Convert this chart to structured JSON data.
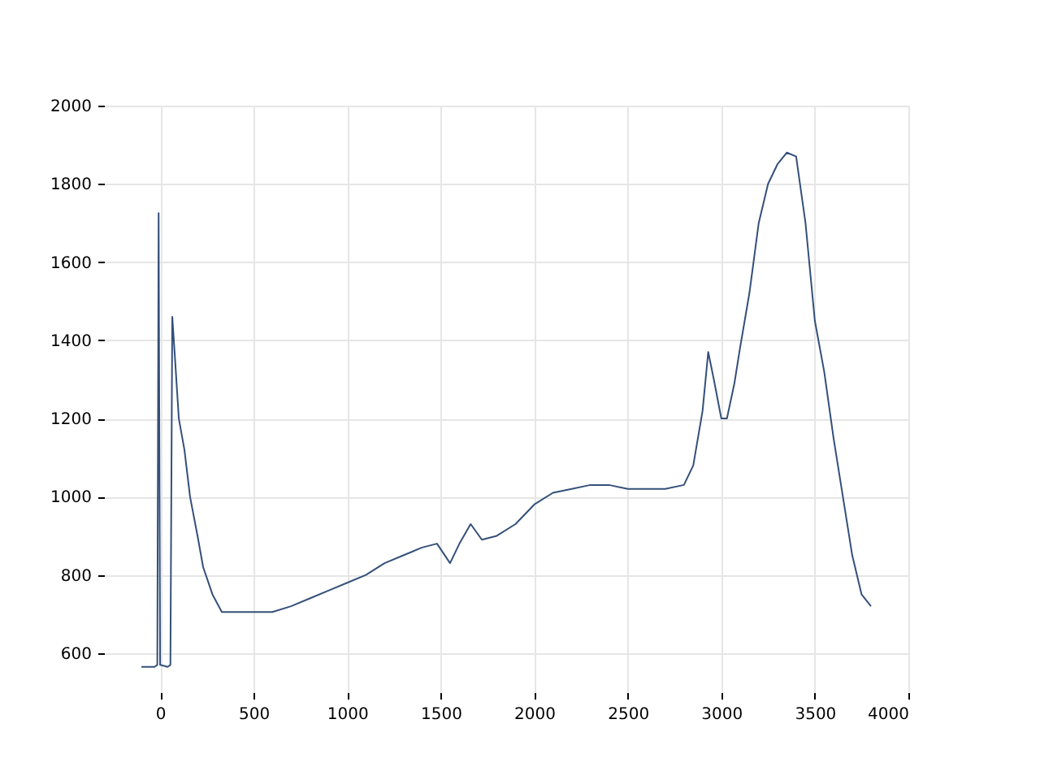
{
  "chart_data": {
    "type": "line",
    "x": [
      -100,
      -30,
      -15,
      -8,
      0,
      40,
      55,
      65,
      80,
      100,
      130,
      160,
      200,
      230,
      280,
      330,
      400,
      500,
      600,
      700,
      800,
      900,
      1000,
      1100,
      1200,
      1300,
      1400,
      1480,
      1550,
      1600,
      1660,
      1720,
      1800,
      1900,
      2000,
      2100,
      2200,
      2300,
      2400,
      2500,
      2600,
      2700,
      2800,
      2850,
      2900,
      2930,
      2960,
      3000,
      3030,
      3070,
      3100,
      3150,
      3200,
      3250,
      3300,
      3350,
      3400,
      3450,
      3500,
      3550,
      3600,
      3650,
      3700,
      3750,
      3800
    ],
    "series": [
      {
        "color": "#34507a",
        "values": [
          565,
          565,
          570,
          1725,
          570,
          565,
          570,
          1460,
          1350,
          1200,
          1120,
          1000,
          900,
          820,
          750,
          705,
          705,
          705,
          705,
          720,
          740,
          760,
          780,
          800,
          830,
          850,
          870,
          880,
          830,
          880,
          930,
          890,
          900,
          930,
          980,
          1010,
          1020,
          1030,
          1030,
          1020,
          1020,
          1020,
          1030,
          1080,
          1220,
          1370,
          1300,
          1200,
          1200,
          1290,
          1380,
          1520,
          1700,
          1800,
          1850,
          1880,
          1870,
          1700,
          1450,
          1320,
          1150,
          1000,
          850,
          750,
          720
        ]
      }
    ],
    "xlim": [
      -300,
      4000
    ],
    "xticks": [
      0,
      500,
      1000,
      1500,
      2000,
      2500,
      3000,
      3500,
      4000
    ],
    "ylim": [
      500,
      2000
    ],
    "yticks": [
      600,
      800,
      1000,
      1200,
      1400,
      1600,
      1800,
      2000
    ],
    "grid": true
  }
}
